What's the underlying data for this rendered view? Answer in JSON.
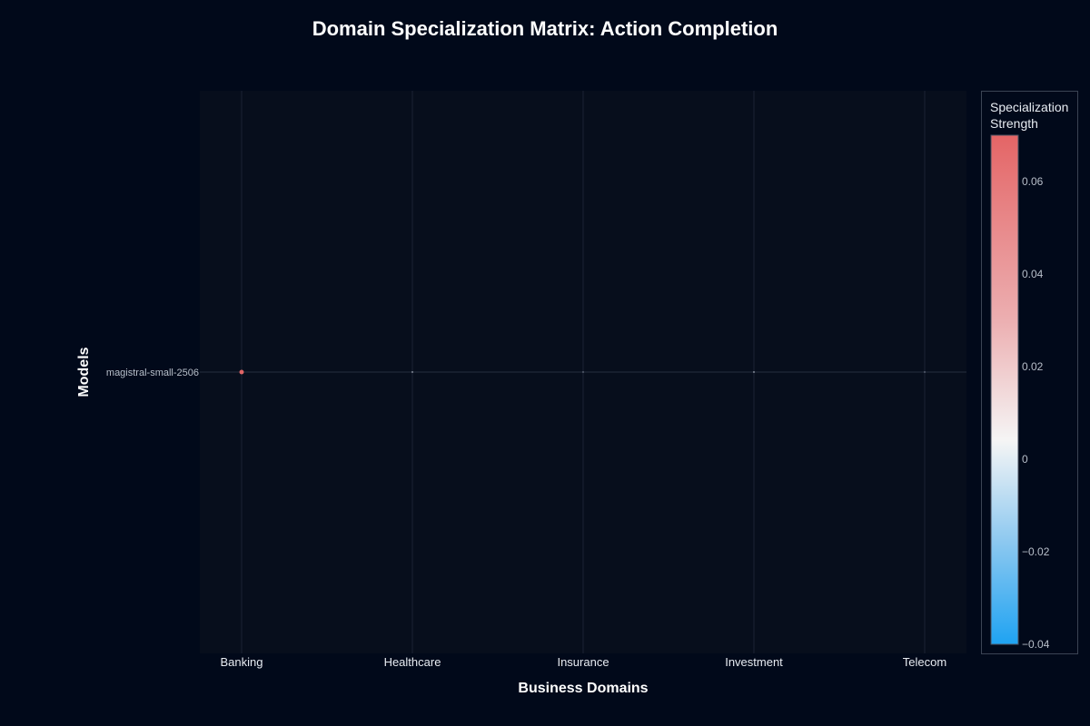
{
  "chart_data": {
    "type": "scatter",
    "title": "Domain Specialization Matrix: Action Completion",
    "xlabel": "Business Domains",
    "ylabel": "Models",
    "categories": [
      "Banking",
      "Healthcare",
      "Insurance",
      "Investment",
      "Telecom"
    ],
    "models": [
      "magistral-small-2506"
    ],
    "points": [
      {
        "model": "magistral-small-2506",
        "domain": "Banking",
        "value": 0.07,
        "color": "#e06566"
      },
      {
        "model": "magistral-small-2506",
        "domain": "Healthcare",
        "value": 0.02,
        "color": "#dfe6ef"
      },
      {
        "model": "magistral-small-2506",
        "domain": "Insurance",
        "value": 0.01,
        "color": "#8a93a3"
      },
      {
        "model": "magistral-small-2506",
        "domain": "Investment",
        "value": 0.02,
        "color": "#dfe6ef"
      },
      {
        "model": "magistral-small-2506",
        "domain": "Telecom",
        "value": 0.01,
        "color": "#8a93a3"
      }
    ],
    "colorbar": {
      "title_lines": [
        "Specialization",
        "Strength"
      ],
      "range": [
        -0.04,
        0.07
      ],
      "ticks": [
        0.06,
        0.04,
        0.02,
        0,
        -0.02,
        -0.04
      ],
      "tick_labels": [
        "0.06",
        "0.04",
        "0.02",
        "0",
        "−0.02",
        "−0.04"
      ],
      "colors": [
        "#e46566",
        "#f5f5f5",
        "#1fa3f2"
      ]
    },
    "grid": true,
    "legend": "right"
  }
}
